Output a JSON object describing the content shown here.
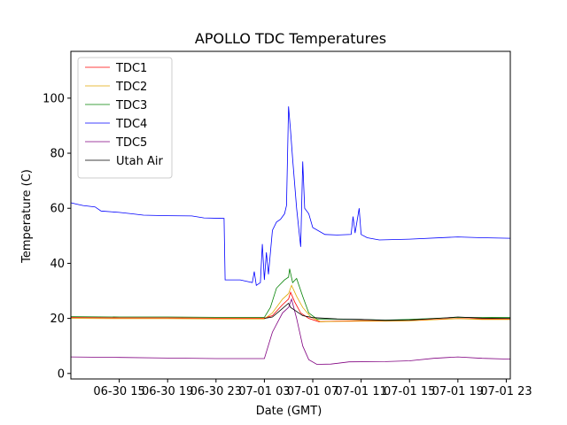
{
  "chart_data": {
    "type": "line",
    "title": "APOLLO TDC Temperatures",
    "xlabel": "Date (GMT)",
    "ylabel": "Temperature (C)",
    "x_unit": "hour",
    "x_ticks": [
      {
        "x": "06-30 15",
        "label": "06-30 15"
      },
      {
        "x": "06-30 19",
        "label": "06-30 19"
      },
      {
        "x": "06-30 23",
        "label": "06-30 23"
      },
      {
        "x": "07-01 03",
        "label": "07-01 03"
      },
      {
        "x": "07-01 07",
        "label": "07-01 07"
      },
      {
        "x": "07-01 11",
        "label": "07-01 11"
      },
      {
        "x": "07-01 15",
        "label": "07-01 15"
      },
      {
        "x": "07-01 19",
        "label": "07-01 19"
      },
      {
        "x": "07-01 23",
        "label": "07-01 23"
      }
    ],
    "xlim": [
      "06-30 11:00",
      "07-01 23:20"
    ],
    "y_ticks": [
      0,
      20,
      40,
      60,
      80,
      100
    ],
    "ylim": [
      -2,
      117
    ],
    "legend_position": "upper-left",
    "grid": false,
    "series": [
      {
        "name": "TDC1",
        "color": "#ff0000",
        "points": [
          {
            "x": "06-30 11:00",
            "y": 20.3
          },
          {
            "x": "06-30 15:00",
            "y": 20.2
          },
          {
            "x": "06-30 19:00",
            "y": 20.2
          },
          {
            "x": "06-30 23:00",
            "y": 20.1
          },
          {
            "x": "07-01 03:00",
            "y": 20.1
          },
          {
            "x": "07-01 03:40",
            "y": 21
          },
          {
            "x": "07-01 04:30",
            "y": 25
          },
          {
            "x": "07-01 05:00",
            "y": 27
          },
          {
            "x": "07-01 05:10",
            "y": 29.5
          },
          {
            "x": "07-01 05:30",
            "y": 26
          },
          {
            "x": "07-01 06:00",
            "y": 22
          },
          {
            "x": "07-01 06:40",
            "y": 20
          },
          {
            "x": "07-01 07:30",
            "y": 18.8
          },
          {
            "x": "07-01 09:00",
            "y": 19
          },
          {
            "x": "07-01 11:00",
            "y": 19.2
          },
          {
            "x": "07-01 13:00",
            "y": 19.1
          },
          {
            "x": "07-01 15:00",
            "y": 19.2
          },
          {
            "x": "07-01 18:00",
            "y": 19.8
          },
          {
            "x": "07-01 19:00",
            "y": 20
          },
          {
            "x": "07-01 21:00",
            "y": 19.8
          },
          {
            "x": "07-01 23:20",
            "y": 19.8
          }
        ]
      },
      {
        "name": "TDC2",
        "color": "#e0a800",
        "points": [
          {
            "x": "06-30 11:00",
            "y": 20
          },
          {
            "x": "06-30 15:00",
            "y": 19.9
          },
          {
            "x": "06-30 19:00",
            "y": 19.9
          },
          {
            "x": "06-30 23:00",
            "y": 19.8
          },
          {
            "x": "07-01 03:00",
            "y": 19.8
          },
          {
            "x": "07-01 03:40",
            "y": 22
          },
          {
            "x": "07-01 04:30",
            "y": 27
          },
          {
            "x": "07-01 05:00",
            "y": 29
          },
          {
            "x": "07-01 05:15",
            "y": 32
          },
          {
            "x": "07-01 05:40",
            "y": 28
          },
          {
            "x": "07-01 06:10",
            "y": 24
          },
          {
            "x": "07-01 06:50",
            "y": 20.5
          },
          {
            "x": "07-01 07:40",
            "y": 18.8
          },
          {
            "x": "07-01 09:00",
            "y": 18.9
          },
          {
            "x": "07-01 11:00",
            "y": 19
          },
          {
            "x": "07-01 13:00",
            "y": 19
          },
          {
            "x": "07-01 15:00",
            "y": 19.1
          },
          {
            "x": "07-01 18:00",
            "y": 19.7
          },
          {
            "x": "07-01 19:00",
            "y": 19.9
          },
          {
            "x": "07-01 21:00",
            "y": 19.6
          },
          {
            "x": "07-01 23:20",
            "y": 19.6
          }
        ]
      },
      {
        "name": "TDC3",
        "color": "#008000",
        "points": [
          {
            "x": "06-30 11:00",
            "y": 20.6
          },
          {
            "x": "06-30 15:00",
            "y": 20.5
          },
          {
            "x": "06-30 19:00",
            "y": 20.5
          },
          {
            "x": "06-30 23:00",
            "y": 20.4
          },
          {
            "x": "07-01 03:00",
            "y": 20.4
          },
          {
            "x": "07-01 03:30",
            "y": 24
          },
          {
            "x": "07-01 04:00",
            "y": 31
          },
          {
            "x": "07-01 04:40",
            "y": 34
          },
          {
            "x": "07-01 05:00",
            "y": 35
          },
          {
            "x": "07-01 05:05",
            "y": 38
          },
          {
            "x": "07-01 05:20",
            "y": 33
          },
          {
            "x": "07-01 05:40",
            "y": 34.5
          },
          {
            "x": "07-01 06:10",
            "y": 28
          },
          {
            "x": "07-01 06:40",
            "y": 22
          },
          {
            "x": "07-01 07:20",
            "y": 19.8
          },
          {
            "x": "07-01 09:00",
            "y": 19.7
          },
          {
            "x": "07-01 11:00",
            "y": 19.6
          },
          {
            "x": "07-01 13:00",
            "y": 19.4
          },
          {
            "x": "07-01 15:00",
            "y": 19.6
          },
          {
            "x": "07-01 18:00",
            "y": 20.2
          },
          {
            "x": "07-01 19:00",
            "y": 20.4
          },
          {
            "x": "07-01 21:00",
            "y": 20.3
          },
          {
            "x": "07-01 23:20",
            "y": 20.4
          }
        ]
      },
      {
        "name": "TDC4",
        "color": "#0000ff",
        "points": [
          {
            "x": "06-30 11:00",
            "y": 62
          },
          {
            "x": "06-30 11:30",
            "y": 61.5
          },
          {
            "x": "06-30 12:00",
            "y": 61
          },
          {
            "x": "06-30 13:00",
            "y": 60.5
          },
          {
            "x": "06-30 13:30",
            "y": 59
          },
          {
            "x": "06-30 15:00",
            "y": 58.5
          },
          {
            "x": "06-30 16:00",
            "y": 58
          },
          {
            "x": "06-30 17:00",
            "y": 57.5
          },
          {
            "x": "06-30 19:00",
            "y": 57.3
          },
          {
            "x": "06-30 21:00",
            "y": 57.2
          },
          {
            "x": "06-30 22:00",
            "y": 56.5
          },
          {
            "x": "06-30 23:40",
            "y": 56.3
          },
          {
            "x": "06-30 23:45",
            "y": 34
          },
          {
            "x": "07-01 01:00",
            "y": 34
          },
          {
            "x": "07-01 01:30",
            "y": 33.5
          },
          {
            "x": "07-01 02:00",
            "y": 33
          },
          {
            "x": "07-01 02:10",
            "y": 37
          },
          {
            "x": "07-01 02:20",
            "y": 32
          },
          {
            "x": "07-01 02:40",
            "y": 33
          },
          {
            "x": "07-01 02:50",
            "y": 47
          },
          {
            "x": "07-01 03:00",
            "y": 34
          },
          {
            "x": "07-01 03:10",
            "y": 44
          },
          {
            "x": "07-01 03:20",
            "y": 36
          },
          {
            "x": "07-01 03:40",
            "y": 52
          },
          {
            "x": "07-01 04:00",
            "y": 55
          },
          {
            "x": "07-01 04:20",
            "y": 56
          },
          {
            "x": "07-01 04:40",
            "y": 58
          },
          {
            "x": "07-01 04:50",
            "y": 61
          },
          {
            "x": "07-01 05:00",
            "y": 97
          },
          {
            "x": "07-01 05:10",
            "y": 88
          },
          {
            "x": "07-01 05:20",
            "y": 78
          },
          {
            "x": "07-01 05:40",
            "y": 60
          },
          {
            "x": "07-01 06:00",
            "y": 46
          },
          {
            "x": "07-01 06:10",
            "y": 77
          },
          {
            "x": "07-01 06:20",
            "y": 60
          },
          {
            "x": "07-01 06:40",
            "y": 58
          },
          {
            "x": "07-01 07:00",
            "y": 53
          },
          {
            "x": "07-01 08:00",
            "y": 50.5
          },
          {
            "x": "07-01 09:00",
            "y": 50.3
          },
          {
            "x": "07-01 10:10",
            "y": 50.5
          },
          {
            "x": "07-01 10:20",
            "y": 57
          },
          {
            "x": "07-01 10:30",
            "y": 51
          },
          {
            "x": "07-01 10:50",
            "y": 60
          },
          {
            "x": "07-01 11:00",
            "y": 50.5
          },
          {
            "x": "07-01 11:30",
            "y": 49.3
          },
          {
            "x": "07-01 12:30",
            "y": 48.5
          },
          {
            "x": "07-01 15:00",
            "y": 48.8
          },
          {
            "x": "07-01 19:00",
            "y": 49.6
          },
          {
            "x": "07-01 21:00",
            "y": 49.3
          },
          {
            "x": "07-01 23:20",
            "y": 49.1
          }
        ]
      },
      {
        "name": "TDC5",
        "color": "#800080",
        "points": [
          {
            "x": "06-30 11:00",
            "y": 6
          },
          {
            "x": "06-30 15:00",
            "y": 5.8
          },
          {
            "x": "06-30 19:00",
            "y": 5.6
          },
          {
            "x": "06-30 23:00",
            "y": 5.4
          },
          {
            "x": "07-01 03:00",
            "y": 5.4
          },
          {
            "x": "07-01 03:40",
            "y": 15
          },
          {
            "x": "07-01 04:30",
            "y": 22
          },
          {
            "x": "07-01 05:00",
            "y": 24
          },
          {
            "x": "07-01 05:15",
            "y": 27
          },
          {
            "x": "07-01 05:40",
            "y": 20
          },
          {
            "x": "07-01 06:10",
            "y": 10
          },
          {
            "x": "07-01 06:40",
            "y": 5
          },
          {
            "x": "07-01 07:20",
            "y": 3.3
          },
          {
            "x": "07-01 08:30",
            "y": 3.4
          },
          {
            "x": "07-01 10:00",
            "y": 4.2
          },
          {
            "x": "07-01 13:00",
            "y": 4.3
          },
          {
            "x": "07-01 15:00",
            "y": 4.6
          },
          {
            "x": "07-01 17:00",
            "y": 5.5
          },
          {
            "x": "07-01 19:00",
            "y": 6
          },
          {
            "x": "07-01 21:00",
            "y": 5.5
          },
          {
            "x": "07-01 23:20",
            "y": 5.2
          }
        ]
      },
      {
        "name": "Utah Air",
        "color": "#000000",
        "points": [
          {
            "x": "07-01 03:00",
            "y": 20
          },
          {
            "x": "07-01 03:40",
            "y": 20.5
          },
          {
            "x": "07-01 04:20",
            "y": 23
          },
          {
            "x": "07-01 05:00",
            "y": 25.5
          },
          {
            "x": "07-01 05:10",
            "y": 24
          },
          {
            "x": "07-01 05:30",
            "y": 23
          },
          {
            "x": "07-01 06:10",
            "y": 21
          },
          {
            "x": "07-01 07:00",
            "y": 20.3
          },
          {
            "x": "07-01 09:00",
            "y": 19.8
          },
          {
            "x": "07-01 11:00",
            "y": 19.6
          },
          {
            "x": "07-01 13:00",
            "y": 19.3
          },
          {
            "x": "07-01 15:00",
            "y": 19.4
          },
          {
            "x": "07-01 18:00",
            "y": 20.2
          },
          {
            "x": "07-01 19:00",
            "y": 20.5
          },
          {
            "x": "07-01 21:00",
            "y": 20.1
          },
          {
            "x": "07-01 23:20",
            "y": 20
          }
        ]
      }
    ]
  }
}
